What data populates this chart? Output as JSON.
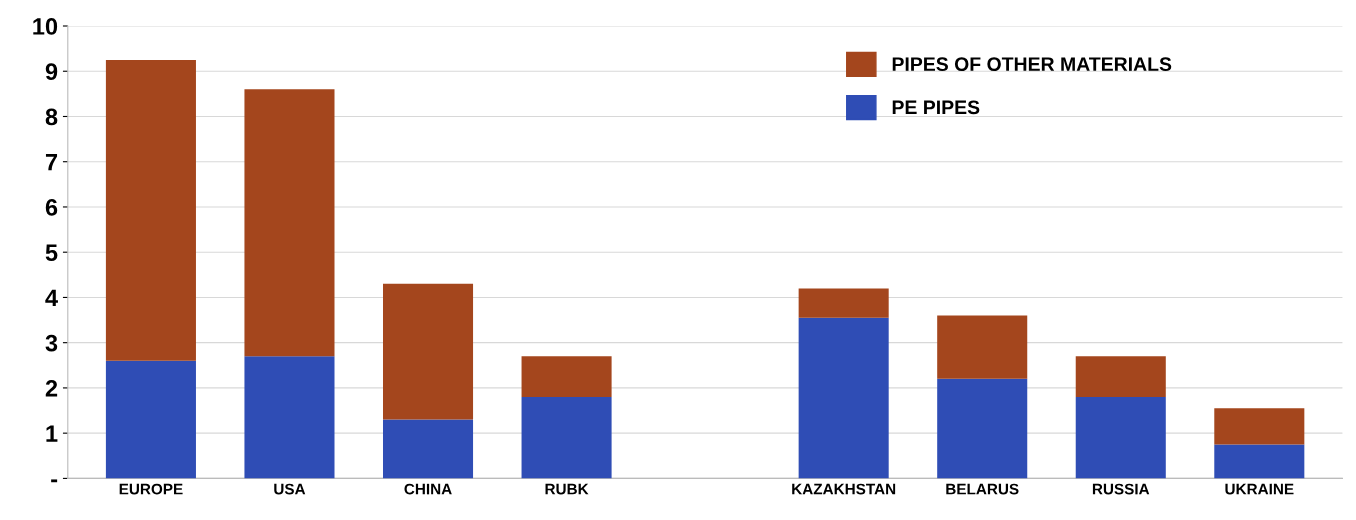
{
  "chart_data": {
    "type": "bar",
    "stacked": true,
    "categories": [
      "EUROPE",
      "USA",
      "CHINA",
      "RUBK",
      null,
      "KAZAKHSTAN",
      "BELARUS",
      "RUSSIA",
      "UKRAINE"
    ],
    "series": [
      {
        "name": "PE PIPES",
        "color": "#2f4db5",
        "values": [
          2.6,
          2.7,
          1.3,
          1.8,
          null,
          3.55,
          2.2,
          1.8,
          0.75
        ]
      },
      {
        "name": "PIPES OF OTHER MATERIALS",
        "color": "#a4461d",
        "values": [
          6.65,
          5.9,
          3.0,
          0.9,
          null,
          0.65,
          1.4,
          0.9,
          0.8
        ]
      }
    ],
    "ylim": [
      0,
      10
    ],
    "yticks": [
      {
        "value": 0,
        "label": "-"
      },
      1,
      2,
      3,
      4,
      5,
      6,
      7,
      8,
      9,
      10
    ],
    "grid": "y",
    "legend": "top right"
  }
}
